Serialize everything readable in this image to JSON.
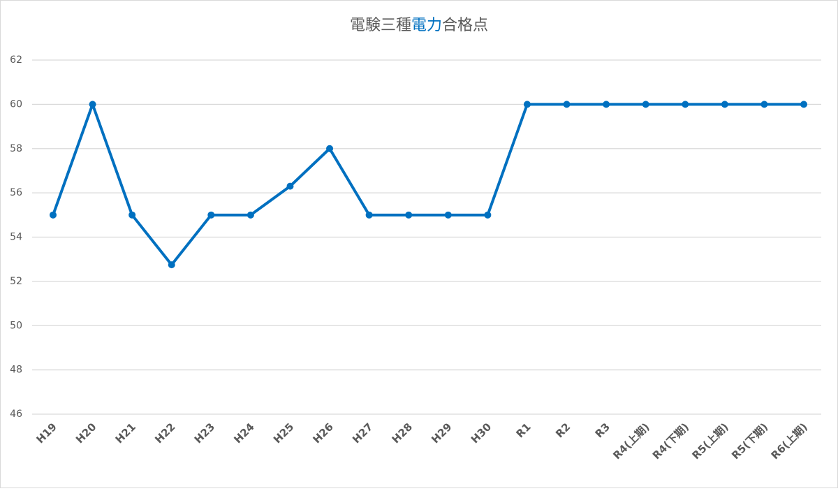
{
  "chart_data": {
    "type": "line",
    "title": {
      "before": "電験三種",
      "highlight": "電力",
      "after": "合格点"
    },
    "categories": [
      "H19",
      "H20",
      "H21",
      "H22",
      "H23",
      "H24",
      "H25",
      "H26",
      "H27",
      "H28",
      "H29",
      "H30",
      "R1",
      "R2",
      "R3",
      "R4(上期)",
      "R4(下期)",
      "R5(上期)",
      "R5(下期)",
      "R6(上期)"
    ],
    "series": [
      {
        "color": "#0070c0",
        "values": [
          55,
          60,
          55,
          52.75,
          55,
          55,
          56.3,
          58,
          55,
          55,
          55,
          55,
          60,
          60,
          60,
          60,
          60,
          60,
          60,
          60
        ]
      }
    ],
    "ylim": [
      46,
      62
    ],
    "yticks": [
      46,
      48,
      50,
      52,
      54,
      56,
      58,
      60,
      62
    ],
    "grid": true
  }
}
